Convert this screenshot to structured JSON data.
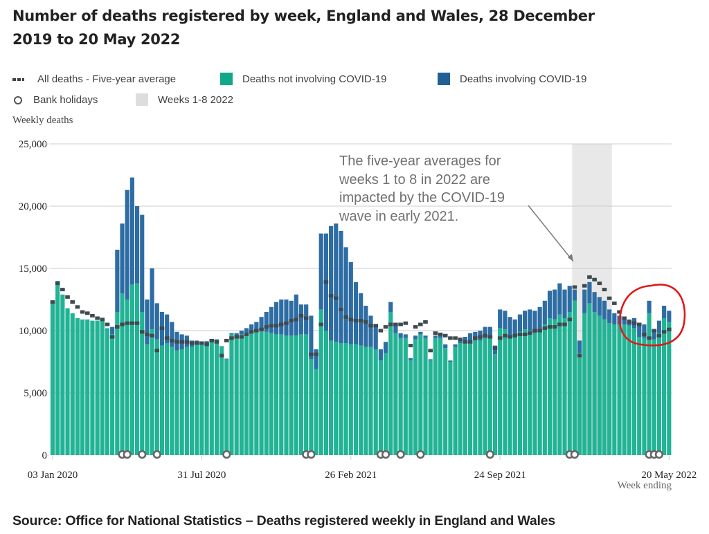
{
  "title": "Number of deaths registered by week, England and Wales, 28 December 2019 to 20 May 2022",
  "legend": {
    "five_year_avg": "All deaths - Five-year average",
    "not_covid": "Deaths not involving COVID-19",
    "covid": "Deaths involving COVID-19",
    "bank_holidays": "Bank holidays",
    "weeks_shade": "Weeks 1-8 2022"
  },
  "colors": {
    "not_covid": "#22b395",
    "covid": "#2e6da4",
    "average": "#3d4a4f",
    "shade": "#e8e8e8",
    "annotation_circle": "#e01818"
  },
  "source": "Source: Office for National Statistics – Deaths registered weekly in England and Wales",
  "chart_data": {
    "type": "bar",
    "stacked": true,
    "title": "Number of deaths registered by week, England and Wales, 28 December 2019 to 20 May 2022",
    "ylabel": "Weekly deaths",
    "xlabel": "Week ending",
    "ylim": [
      0,
      25000
    ],
    "yticks": [
      0,
      5000,
      10000,
      15000,
      20000,
      25000
    ],
    "ytick_labels": [
      "0",
      "5,000",
      "10,000",
      "15,000",
      "20,000",
      "25,000"
    ],
    "xtick_labels": [
      {
        "index": 0,
        "label": "03 Jan 2020"
      },
      {
        "index": 30,
        "label": "31 Jul 2020"
      },
      {
        "index": 60,
        "label": "26 Feb 2021"
      },
      {
        "index": 90,
        "label": "24 Sep 2021"
      },
      {
        "index": 124,
        "label": "20 May 2022"
      }
    ],
    "grid": true,
    "legend_position": "top",
    "shaded_range": {
      "label": "Weeks 1-8 2022",
      "start_index": 105,
      "end_index": 112
    },
    "annotation": {
      "text": "The five-year averages for\nweeks 1 to 8 in 2022 are\nimpacted by the COVID-19\nwave in early 2021.",
      "points_to_index": 105
    },
    "highlight_circle_indices": [
      118,
      124
    ],
    "bank_holiday_indices": [
      14,
      15,
      18,
      21,
      35,
      51,
      52,
      66,
      67,
      70,
      74,
      88,
      104,
      105,
      120,
      121,
      122
    ],
    "series": [
      {
        "name": "Deaths not involving COVID-19",
        "values": [
          12200,
          14000,
          12900,
          11800,
          11400,
          11000,
          10900,
          10900,
          10800,
          10800,
          10900,
          10200,
          9700,
          11500,
          13000,
          12500,
          13700,
          13800,
          11500,
          8900,
          10100,
          9300,
          8800,
          9000,
          8700,
          8400,
          8500,
          8700,
          8700,
          8900,
          8900,
          9000,
          9100,
          9200,
          8700,
          7700,
          9700,
          9600,
          9700,
          9800,
          9900,
          9900,
          10000,
          9900,
          9800,
          9700,
          9700,
          9600,
          9600,
          9600,
          9700,
          9700,
          7700,
          6900,
          11700,
          10000,
          9200,
          9100,
          9000,
          9000,
          8900,
          8900,
          8800,
          8700,
          8700,
          8500,
          7600,
          8200,
          11500,
          9800,
          9400,
          9400,
          7600,
          9300,
          9700,
          9400,
          7600,
          9400,
          9400,
          8600,
          7500,
          8700,
          9000,
          9100,
          9200,
          9200,
          9200,
          9400,
          9400,
          8100,
          10200,
          10100,
          9600,
          9500,
          9900,
          10100,
          10000,
          9800,
          10100,
          10500,
          11000,
          10900,
          11300,
          11000,
          11500,
          12400,
          8200,
          11400,
          12200,
          11500,
          11200,
          10900,
          10600,
          10500,
          10500,
          10500,
          10400,
          10200,
          9500,
          9400,
          11400,
          9300,
          9800,
          11000,
          10700
        ],
        "covid_note": "values are for the not-involving-COVID component"
      },
      {
        "name": "Deaths involving COVID-19",
        "values": [
          0,
          0,
          0,
          0,
          0,
          0,
          0,
          0,
          0,
          0,
          0,
          0,
          600,
          5000,
          5600,
          8800,
          8600,
          6200,
          7800,
          3600,
          4900,
          2900,
          2700,
          2300,
          2000,
          1500,
          1200,
          900,
          500,
          300,
          200,
          150,
          100,
          100,
          50,
          50,
          100,
          200,
          300,
          400,
          600,
          800,
          1100,
          1600,
          2100,
          2600,
          2800,
          2900,
          2800,
          3300,
          2400,
          2400,
          3500,
          1600,
          6100,
          7800,
          9200,
          9500,
          9000,
          7700,
          6600,
          5000,
          4200,
          3300,
          2500,
          1800,
          900,
          900,
          800,
          700,
          400,
          300,
          200,
          300,
          200,
          200,
          100,
          200,
          200,
          300,
          100,
          200,
          300,
          400,
          600,
          700,
          800,
          900,
          900,
          700,
          1500,
          1500,
          1500,
          1400,
          1400,
          1500,
          1700,
          1800,
          1800,
          1900,
          2200,
          2400,
          2500,
          2300,
          2100,
          900,
          1000,
          1900,
          1700,
          1600,
          1500,
          1500,
          1100,
          900,
          700,
          600,
          500,
          800,
          1000,
          1100,
          1000,
          700,
          1000,
          1000,
          900
        ]
      },
      {
        "name": "All deaths - Five-year average",
        "values": [
          12300,
          13800,
          13300,
          12700,
          12300,
          11900,
          11500,
          11400,
          11200,
          11000,
          10900,
          10500,
          9500,
          10300,
          10500,
          10600,
          10600,
          10600,
          9900,
          9700,
          9600,
          8400,
          10200,
          9400,
          9200,
          9100,
          9100,
          9100,
          9000,
          9000,
          9000,
          8900,
          9200,
          9100,
          8000,
          9200,
          9400,
          9500,
          9500,
          9700,
          9900,
          10000,
          10100,
          10300,
          10400,
          10400,
          10500,
          10600,
          10800,
          10900,
          11200,
          11000,
          8100,
          8100,
          10500,
          13900,
          12800,
          12600,
          11700,
          11100,
          10900,
          10800,
          10800,
          10700,
          10400,
          10400,
          10000,
          10300,
          10500,
          10500,
          10500,
          10600,
          8800,
          10300,
          10500,
          10700,
          8400,
          9800,
          9700,
          9600,
          9400,
          9400,
          9300,
          9100,
          9100,
          9400,
          9500,
          9600,
          9500,
          8600,
          9400,
          9600,
          9500,
          9600,
          9700,
          9700,
          9800,
          10000,
          10000,
          10200,
          10300,
          10300,
          10500,
          10500,
          10900,
          13500,
          8000,
          13600,
          14300,
          14100,
          13800,
          13300,
          12600,
          12200,
          11500,
          11000,
          10700,
          10600,
          10500,
          9700,
          9400,
          10000,
          9600,
          9900,
          10100
        ]
      }
    ]
  }
}
